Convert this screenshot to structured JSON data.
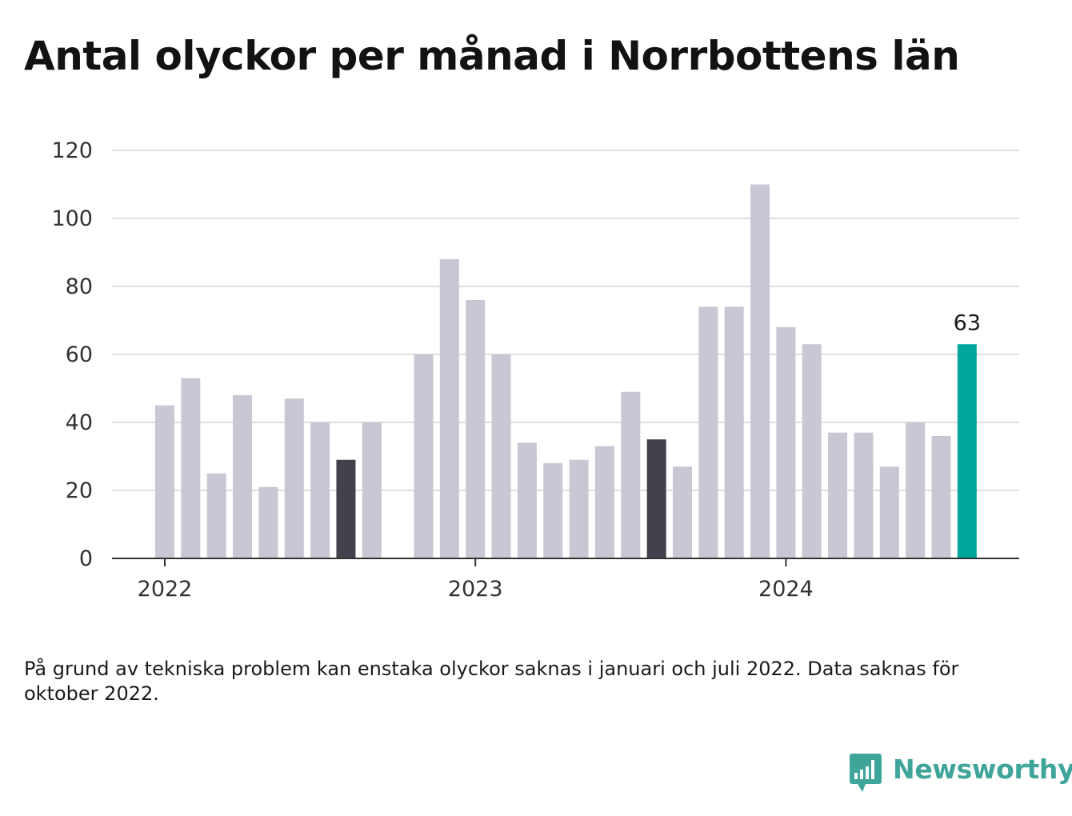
{
  "title": "Antal olyckor per månad i Norrbottens län",
  "note": "På grund av tekniska problem kan enstaka olyckor saknas i januari och juli 2022. Data saknas för oktober 2022.",
  "brand": {
    "name": "Newsworthy",
    "icon": "newsworthy-logo-icon"
  },
  "colors": {
    "bar_default": "#c8c7d3",
    "bar_dark": "#43414c",
    "bar_highlight": "#00a59b",
    "grid": "#dedede",
    "axis": "#333333",
    "brand": "#3fa59b"
  },
  "chart_data": {
    "type": "bar",
    "title": "Antal olyckor per månad i Norrbottens län",
    "xlabel": "",
    "ylabel": "",
    "ylim": [
      0,
      120
    ],
    "yticks": [
      0,
      20,
      40,
      60,
      80,
      100,
      120
    ],
    "x_tick_labels": [
      {
        "label": "2022",
        "month": "2022-01"
      },
      {
        "label": "2023",
        "month": "2023-01"
      },
      {
        "label": "2024",
        "month": "2024-01"
      }
    ],
    "grid": true,
    "months": [
      "2022-01",
      "2022-02",
      "2022-03",
      "2022-04",
      "2022-05",
      "2022-06",
      "2022-07",
      "2022-08",
      "2022-09",
      "2022-10",
      "2022-11",
      "2022-12",
      "2023-01",
      "2023-02",
      "2023-03",
      "2023-04",
      "2023-05",
      "2023-06",
      "2023-07",
      "2023-08",
      "2023-09",
      "2023-10",
      "2023-11",
      "2023-12",
      "2024-01",
      "2024-02",
      "2024-03",
      "2024-04",
      "2024-05",
      "2024-06",
      "2024-07",
      "2024-08"
    ],
    "values": [
      45,
      53,
      25,
      48,
      21,
      47,
      40,
      29,
      40,
      null,
      60,
      88,
      76,
      60,
      34,
      28,
      29,
      33,
      49,
      35,
      27,
      74,
      74,
      110,
      68,
      63,
      37,
      37,
      27,
      40,
      36,
      63
    ],
    "dark_months": [
      "2022-08",
      "2023-08"
    ],
    "highlight_month": "2024-08",
    "value_labels": [
      {
        "month": "2024-08",
        "text": "63"
      }
    ]
  }
}
